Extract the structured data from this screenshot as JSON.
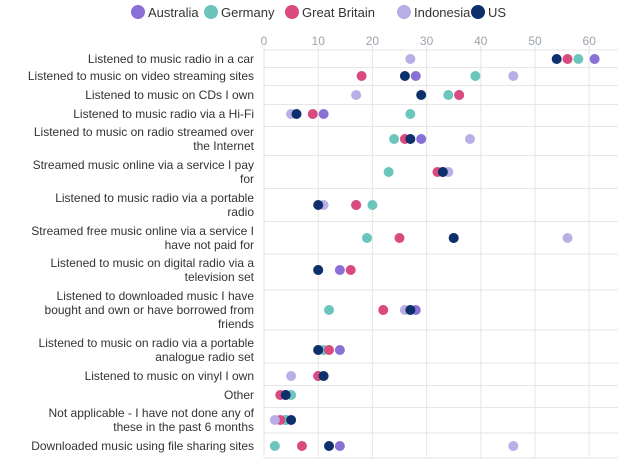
{
  "chart_data": {
    "type": "scatter",
    "orientation": "horizontal-dot-plot",
    "title": "",
    "xlabel": "",
    "ylabel": "",
    "xlim": [
      0,
      65
    ],
    "xticks": [
      0,
      10,
      20,
      30,
      40,
      50,
      60
    ],
    "grid": true,
    "legend_position": "top",
    "categories": [
      "Listened to music radio in a car",
      "Listened to music on video streaming sites",
      "Listened to music on CDs I own",
      "Listened to music radio via a Hi-Fi",
      "Listened to music on radio streamed over the Internet",
      "Streamed music online via a service I pay for",
      "Listened to music radio via a portable radio",
      "Streamed free music online via a service I have not paid for",
      "Listened to music on digital radio via a television set",
      "Listened to downloaded music I have bought and own or have borrowed from friends",
      "Listened to music on radio via a portable analogue radio set",
      "Listened to music on vinyl I own",
      "Other",
      "Not applicable - I have not done any of these in the past 6 months",
      "Downloaded music using file sharing sites"
    ],
    "category_lines": [
      [
        "Listened to music radio in a car"
      ],
      [
        "Listened to music on video streaming sites"
      ],
      [
        "Listened to music on CDs I own"
      ],
      [
        "Listened to music radio via a Hi-Fi"
      ],
      [
        "Listened to music on radio streamed over",
        "the Internet"
      ],
      [
        "Streamed music online via a service I pay",
        "for"
      ],
      [
        "Listened to music radio via a portable",
        "radio"
      ],
      [
        "Streamed free music online via a service I",
        "have not paid for"
      ],
      [
        "Listened to music on digital radio via a",
        "television set"
      ],
      [
        "Listened to downloaded music I have",
        "bought and own or have borrowed from",
        "friends"
      ],
      [
        "Listened to music on radio via a portable",
        "analogue radio set"
      ],
      [
        "Listened to music on vinyl I own"
      ],
      [
        "Other"
      ],
      [
        "Not applicable - I have not done any of",
        "these in the past 6 months"
      ],
      [
        "Downloaded music using file sharing sites"
      ]
    ],
    "series": [
      {
        "name": "Australia",
        "color": "#8a6fd6",
        "values": [
          61,
          28,
          36,
          11,
          29,
          33,
          17,
          35,
          14,
          28,
          14,
          10,
          4,
          4,
          14
        ]
      },
      {
        "name": "Germany",
        "color": "#6cc5bd",
        "values": [
          58,
          39,
          34,
          27,
          24,
          23,
          20,
          19,
          10,
          12,
          11,
          10,
          5,
          4,
          2
        ]
      },
      {
        "name": "Great Britain",
        "color": "#d94a7f",
        "values": [
          56,
          18,
          36,
          9,
          26,
          32,
          17,
          25,
          16,
          22,
          12,
          10,
          3,
          3,
          7
        ]
      },
      {
        "name": "Indonesia",
        "color": "#b9aee6",
        "values": [
          27,
          46,
          17,
          5,
          38,
          34,
          11,
          56,
          10,
          26,
          10,
          5,
          4,
          2,
          46
        ]
      },
      {
        "name": "US",
        "color": "#0d2f6b",
        "values": [
          54,
          26,
          29,
          6,
          27,
          33,
          10,
          35,
          10,
          27,
          10,
          11,
          4,
          5,
          12
        ]
      }
    ]
  }
}
